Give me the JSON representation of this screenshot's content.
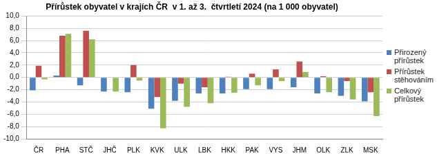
{
  "chart_data": {
    "type": "bar",
    "title": "Přírůstek obyvatel v krajích ČR  v 1. až 3.  čtvrtletí 2024 (na 1 000 obyvatel)",
    "categories": [
      "ČR",
      "PHA",
      "STČ",
      "JHČ",
      "PLK",
      "KVK",
      "ULK",
      "LBK",
      "HKK",
      "PAK",
      "VYS",
      "JHM",
      "OLK",
      "ZLK",
      "MSK"
    ],
    "series": [
      {
        "name": "Přirozený přírůstek",
        "color": "#4f81bd",
        "values": [
          -2.1,
          0.3,
          -1.3,
          -2.3,
          -2.4,
          -5.1,
          -3.8,
          -2.6,
          -2.6,
          -1.9,
          -1.9,
          -1.6,
          -2.6,
          -3.0,
          -3.9
        ]
      },
      {
        "name": "Přírůstek stěhováním",
        "color": "#c0504d",
        "values": [
          1.9,
          6.8,
          7.6,
          0.0,
          2.0,
          -3.2,
          -1.0,
          -1.6,
          0.1,
          0.6,
          1.3,
          2.6,
          0.2,
          -0.6,
          -2.4
        ]
      },
      {
        "name": "Celkový přírůstek",
        "color": "#9bbb59",
        "values": [
          -0.3,
          7.1,
          6.2,
          -2.3,
          -0.5,
          -8.3,
          -4.8,
          -4.2,
          -2.5,
          -1.3,
          -0.6,
          0.9,
          -2.4,
          -3.6,
          -6.3
        ]
      }
    ],
    "ylim": [
      -10,
      10
    ],
    "yticks": [
      {
        "value": -10,
        "label": "-10,0"
      },
      {
        "value": -8,
        "label": "-8,0"
      },
      {
        "value": -6,
        "label": "-6,0"
      },
      {
        "value": -4,
        "label": "-4,0"
      },
      {
        "value": -2,
        "label": "-2,0"
      },
      {
        "value": 0,
        "label": "0,0"
      },
      {
        "value": 2,
        "label": "2,0"
      },
      {
        "value": 4,
        "label": "4,0"
      },
      {
        "value": 6,
        "label": "6,0"
      },
      {
        "value": 8,
        "label": "8,0"
      },
      {
        "value": 10,
        "label": "10,0"
      }
    ],
    "grid": true,
    "legend": "right"
  }
}
